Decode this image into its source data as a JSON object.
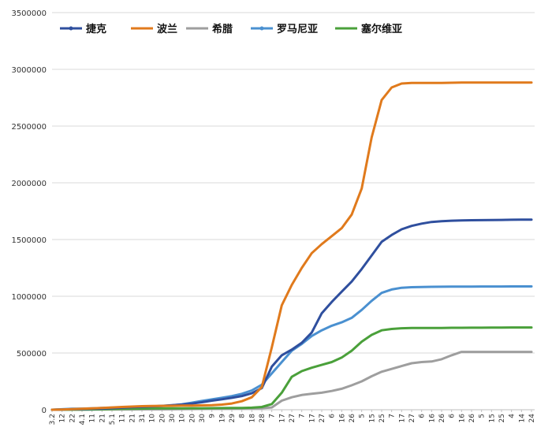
{
  "chart_data": {
    "type": "line",
    "title": "",
    "xlabel": "",
    "ylabel": "",
    "ylim": [
      0,
      3500000
    ],
    "yticks": [
      0,
      500000,
      1000000,
      1500000,
      2000000,
      2500000,
      3000000,
      3500000
    ],
    "grid": "horizontal",
    "legend_position": "top-left",
    "x_labels": [
      "3.2",
      "12",
      "22",
      "4.1",
      "11",
      "21",
      "5.1",
      "11",
      "21",
      "31",
      "10",
      "20",
      "30",
      "10",
      "20",
      "30",
      "9",
      "19",
      "29",
      "8",
      "18",
      "28",
      "7",
      "17",
      "27",
      "7",
      "17",
      "27",
      "6",
      "16",
      "26",
      "5",
      "15",
      "25",
      "7",
      "17",
      "27",
      "6",
      "16",
      "26",
      "6",
      "16",
      "26",
      "5",
      "15",
      "25",
      "4",
      "14",
      "24"
    ],
    "series": [
      {
        "name": "捷克",
        "color": "#2f4f9e",
        "values": [
          0,
          2000,
          4000,
          5000,
          8000,
          10000,
          14000,
          18000,
          22000,
          26000,
          30000,
          34000,
          40000,
          46000,
          54000,
          66000,
          80000,
          92000,
          105000,
          120000,
          145000,
          190000,
          380000,
          480000,
          530000,
          590000,
          680000,
          850000,
          950000,
          1040000,
          1130000,
          1240000,
          1360000,
          1480000,
          1540000,
          1590000,
          1620000,
          1640000,
          1655000,
          1662000,
          1666000,
          1668000,
          1670000,
          1671000,
          1672000,
          1673000,
          1674000,
          1675000,
          1676000
        ]
      },
      {
        "name": "波兰",
        "color": "#e07a1c",
        "values": [
          0,
          2000,
          5000,
          8000,
          12000,
          16000,
          20000,
          24000,
          28000,
          31000,
          33000,
          34000,
          35000,
          36000,
          37000,
          38000,
          40000,
          45000,
          55000,
          75000,
          110000,
          200000,
          550000,
          920000,
          1100000,
          1250000,
          1380000,
          1460000,
          1530000,
          1600000,
          1720000,
          1950000,
          2400000,
          2730000,
          2840000,
          2875000,
          2880000,
          2880000,
          2880000,
          2880000,
          2882000,
          2883000,
          2883000,
          2883000,
          2883000,
          2883000,
          2883000,
          2883000,
          2883000
        ]
      },
      {
        "name": "希腊",
        "color": "#9e9e9e",
        "values": [
          0,
          200,
          500,
          1000,
          1500,
          2000,
          2500,
          2800,
          3000,
          3200,
          3500,
          3800,
          4200,
          5000,
          6000,
          7000,
          8000,
          9000,
          10000,
          11000,
          12000,
          14000,
          20000,
          80000,
          110000,
          130000,
          140000,
          150000,
          165000,
          185000,
          215000,
          250000,
          295000,
          335000,
          360000,
          385000,
          410000,
          420000,
          425000,
          445000,
          480000,
          510000,
          510000,
          510000,
          510000,
          510000,
          510000,
          510000,
          510000
        ]
      },
      {
        "name": "罗马尼亚",
        "color": "#4a90d0",
        "values": [
          0,
          4000,
          8000,
          10000,
          12000,
          15000,
          18000,
          21000,
          24000,
          27000,
          30000,
          33000,
          38000,
          48000,
          62000,
          78000,
          92000,
          105000,
          120000,
          140000,
          170000,
          220000,
          320000,
          420000,
          520000,
          580000,
          650000,
          700000,
          740000,
          770000,
          810000,
          880000,
          960000,
          1030000,
          1060000,
          1075000,
          1080000,
          1082000,
          1083000,
          1084000,
          1085000,
          1085000,
          1085000,
          1086000,
          1086000,
          1086000,
          1087000,
          1087000,
          1087000
        ]
      },
      {
        "name": "塞尔维亚",
        "color": "#4aa03a",
        "values": [
          0,
          500,
          1000,
          2000,
          3000,
          4500,
          6000,
          7500,
          9000,
          10000,
          11000,
          11500,
          12000,
          12500,
          13000,
          13500,
          14000,
          14500,
          15000,
          16000,
          18000,
          24000,
          50000,
          150000,
          290000,
          340000,
          370000,
          395000,
          420000,
          460000,
          520000,
          600000,
          660000,
          700000,
          712000,
          718000,
          720000,
          720000,
          720000,
          721000,
          722000,
          722000,
          723000,
          723000,
          724000,
          724000,
          725000,
          725000,
          725000
        ]
      }
    ]
  }
}
